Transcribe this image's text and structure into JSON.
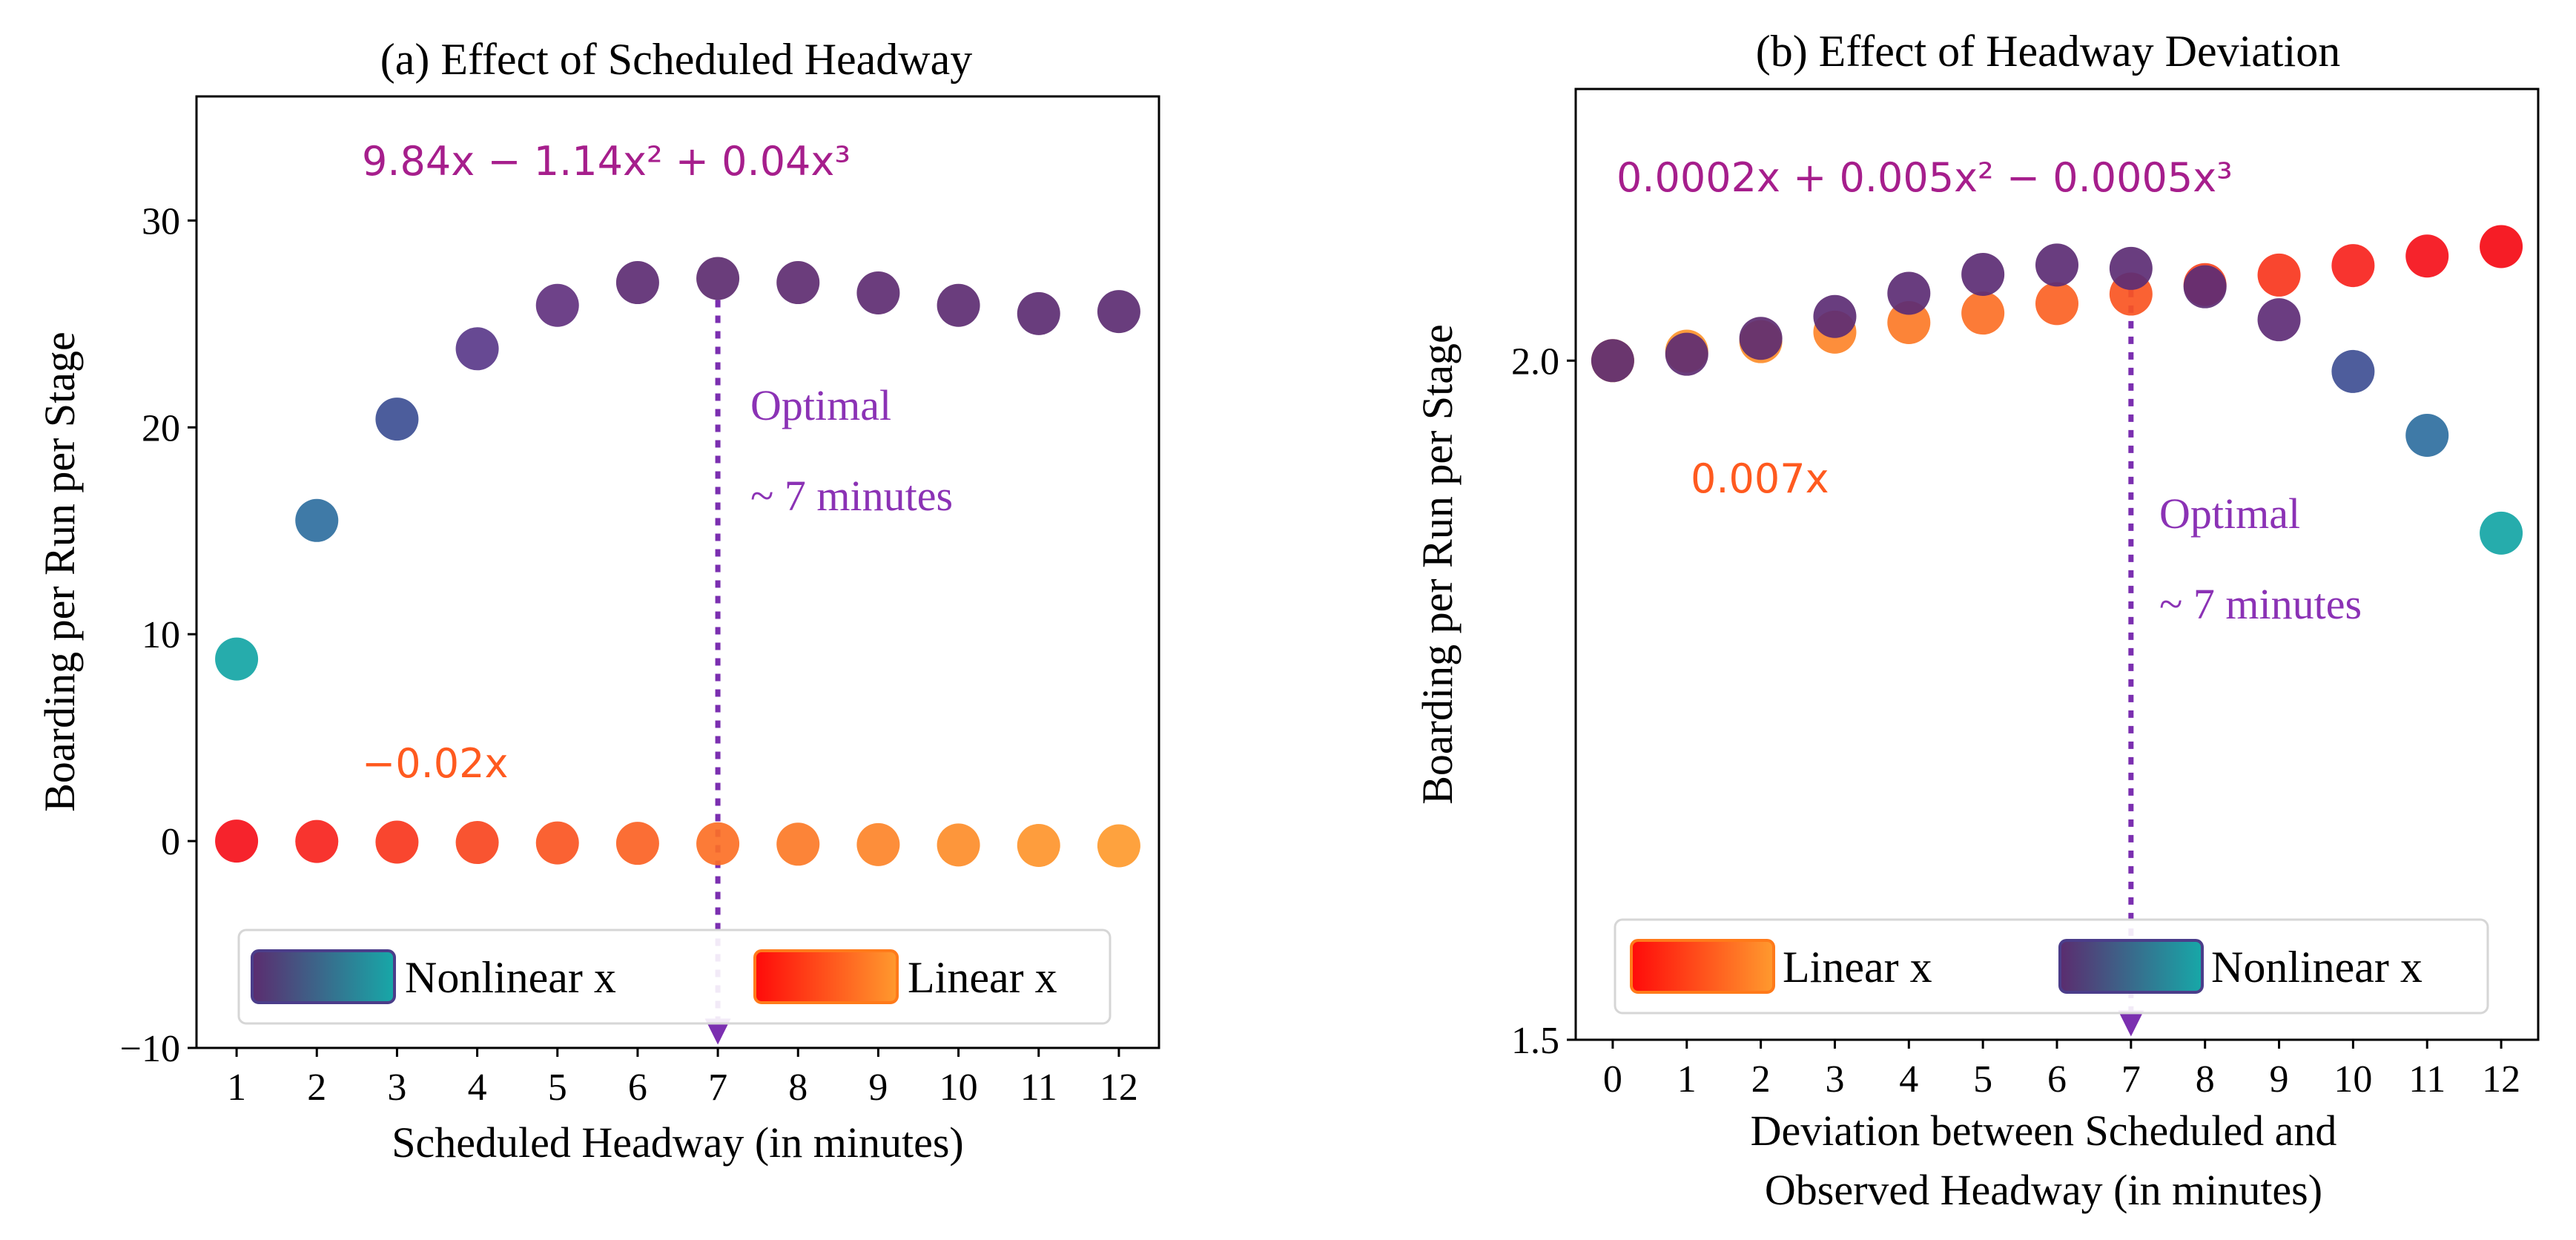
{
  "chart_data": [
    {
      "type": "scatter",
      "title": "(a) Effect of Scheduled Headway",
      "xlabel": "Scheduled Headway (in minutes)",
      "ylabel": "Boarding per Run per Stage",
      "xlim": [
        0.5,
        12.5
      ],
      "ylim": [
        -10,
        36
      ],
      "xticks": [
        "1",
        "2",
        "3",
        "4",
        "5",
        "6",
        "7",
        "8",
        "9",
        "10",
        "11",
        "12"
      ],
      "yticks": [
        "−10",
        "0",
        "10",
        "20",
        "30"
      ],
      "ytick_values": [
        -10,
        0,
        10,
        20,
        30
      ],
      "series": [
        {
          "name": "Nonlinear x",
          "color_start": "#5b2c6f",
          "color_end": "#17a8a8",
          "x": [
            1,
            2,
            3,
            4,
            5,
            6,
            7,
            8,
            9,
            10,
            11,
            12
          ],
          "y": [
            8.8,
            15.5,
            20.4,
            23.8,
            25.9,
            27.0,
            27.2,
            27.0,
            26.5,
            25.9,
            25.5,
            25.6
          ],
          "colors": [
            "#14a5a5",
            "#2f6fa0",
            "#3d4f94",
            "#5a3a8a",
            "#62327f",
            "#5d2c73",
            "#5d2c70",
            "#5e2d71",
            "#5e2d72",
            "#5d2c72",
            "#5c2d72",
            "#5c2d72"
          ]
        },
        {
          "name": "Linear x",
          "color_start": "#ff0a0a",
          "color_end": "#ff9a2e",
          "x": [
            1,
            2,
            3,
            4,
            5,
            6,
            7,
            8,
            9,
            10,
            11,
            12
          ],
          "y": [
            0,
            -0.02,
            -0.05,
            -0.07,
            -0.09,
            -0.11,
            -0.13,
            -0.15,
            -0.17,
            -0.19,
            -0.21,
            -0.23
          ],
          "colors": [
            "#f5101a",
            "#f7231d",
            "#f8361d",
            "#f9451f",
            "#fa5522",
            "#fb6224",
            "#fc7026",
            "#fc7a27",
            "#fd8429",
            "#fd8d2a",
            "#fe952c",
            "#fe9a2e"
          ]
        }
      ],
      "annotations": {
        "nonlinear_eq": "9.84x − 1.14x² + 0.04x³",
        "linear_eq": "−0.02x",
        "optimal_line1": "Optimal",
        "optimal_line2": "~ 7 minutes",
        "optimal_x": 7
      },
      "legend": {
        "placement": "bottom",
        "entries": [
          "Nonlinear x",
          "Linear x"
        ]
      }
    },
    {
      "type": "scatter",
      "title": "(b) Effect of Headway Deviation",
      "xlabel_line1": "Deviation between Scheduled and",
      "xlabel_line2": "Observed Headway (in minutes)",
      "ylabel": "Boarding per Run per Stage",
      "xlim": [
        -0.5,
        12.5
      ],
      "ylim": [
        1.5,
        2.2
      ],
      "xticks": [
        "0",
        "1",
        "2",
        "3",
        "4",
        "5",
        "6",
        "7",
        "8",
        "9",
        "10",
        "11",
        "12"
      ],
      "yticks": [
        "1.5",
        "2.0"
      ],
      "ytick_values": [
        1.5,
        2.0
      ],
      "series": [
        {
          "name": "Linear x",
          "color_start": "#ff0a0a",
          "color_end": "#ff9a2e",
          "x": [
            0,
            1,
            2,
            3,
            4,
            5,
            6,
            7,
            8,
            9,
            10,
            11,
            12
          ],
          "y": [
            2.0,
            2.007,
            2.014,
            2.021,
            2.028,
            2.035,
            2.042,
            2.049,
            2.056,
            2.063,
            2.07,
            2.077,
            2.084
          ],
          "colors": [
            "#fe9a2e",
            "#fe952c",
            "#fd8d2a",
            "#fd842a",
            "#fc7a27",
            "#fc7026",
            "#fb6224",
            "#fa5522",
            "#f9451f",
            "#f8361d",
            "#f7231d",
            "#f5101a",
            "#f50a14"
          ]
        },
        {
          "name": "Nonlinear x",
          "color_start": "#5b2c6f",
          "color_end": "#17a8a8",
          "x": [
            0,
            1,
            2,
            3,
            4,
            5,
            6,
            7,
            8,
            9,
            10,
            11,
            12
          ],
          "y": [
            2.0,
            2.0047,
            2.0164,
            2.0325,
            2.0496,
            2.0635,
            2.0704,
            2.0679,
            2.0544,
            2.0301,
            1.992,
            1.945,
            1.873
          ],
          "colors": [
            "#5d2c72",
            "#5d2c72",
            "#5d2c72",
            "#5c2d74",
            "#5c2d74",
            "#5c2d74",
            "#5c2d74",
            "#5c2d74",
            "#5c2d74",
            "#5e2d76",
            "#3f4f94",
            "#2f6fa0",
            "#14a5a5"
          ]
        }
      ],
      "annotations": {
        "nonlinear_eq": "0.0002x + 0.005x² − 0.0005x³",
        "linear_eq": "0.007x",
        "optimal_line1": "Optimal",
        "optimal_line2": "~ 7 minutes",
        "optimal_x": 7
      },
      "legend": {
        "placement": "bottom",
        "entries": [
          "Linear x",
          "Nonlinear x"
        ]
      }
    }
  ]
}
